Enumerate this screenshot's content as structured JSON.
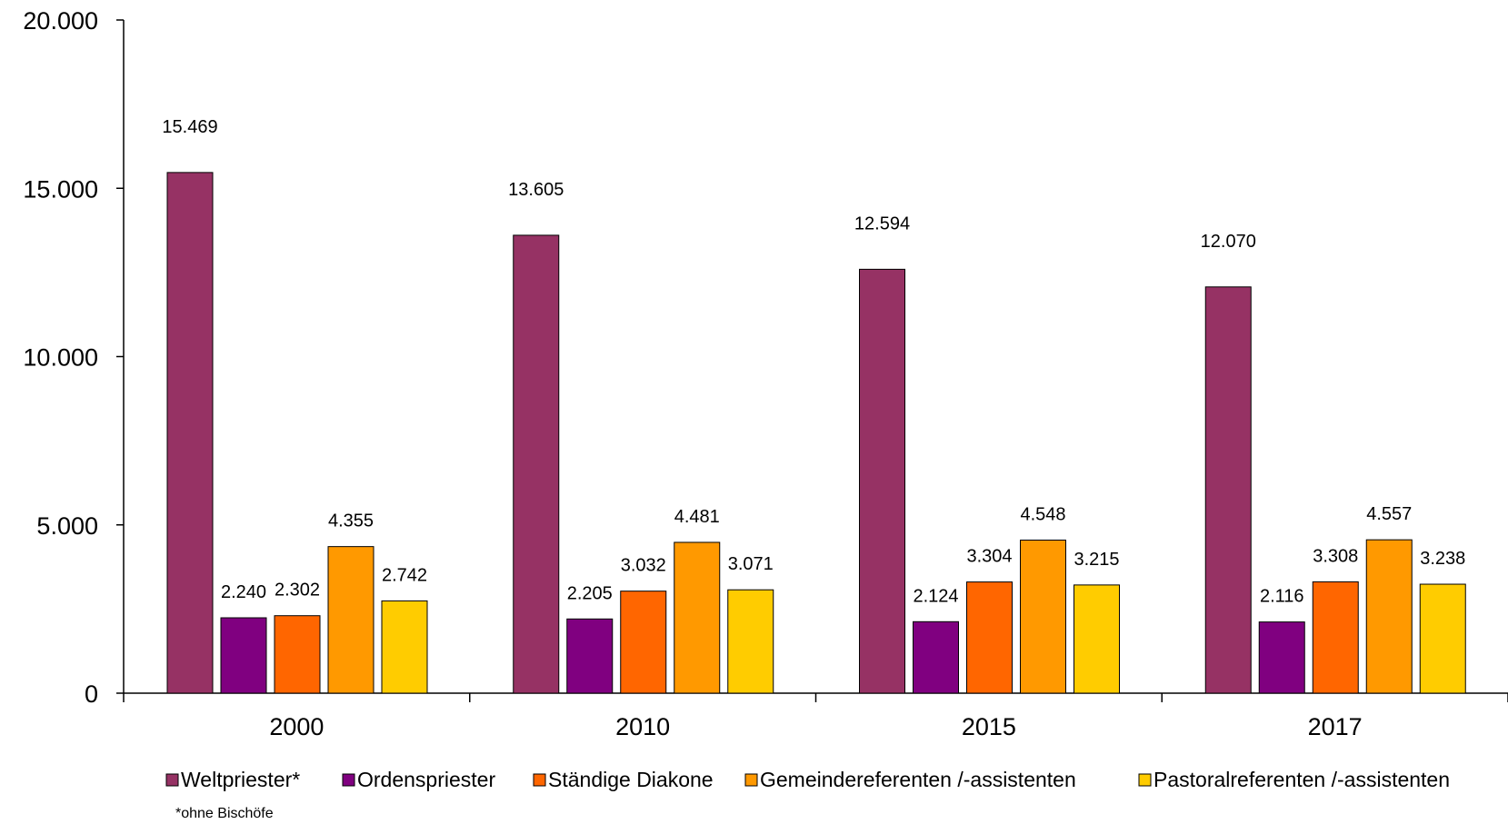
{
  "chart_data": {
    "type": "bar",
    "categories": [
      "2000",
      "2010",
      "2015",
      "2017"
    ],
    "series": [
      {
        "name": "Weltpriester*",
        "color": "#963264",
        "values": [
          15469,
          13605,
          12594,
          12070
        ],
        "labels": [
          "15.469",
          "13.605",
          "12.594",
          "12.070"
        ]
      },
      {
        "name": "Ordenspriester",
        "color": "#800080",
        "values": [
          2240,
          2205,
          2124,
          2116
        ],
        "labels": [
          "2.240",
          "2.205",
          "2.124",
          "2.116"
        ]
      },
      {
        "name": "Ständige Diakone",
        "color": "#ff6600",
        "values": [
          2302,
          3032,
          3304,
          3308
        ],
        "labels": [
          "2.302",
          "3.032",
          "3.304",
          "3.308"
        ]
      },
      {
        "name": "Gemeindereferenten /-assistenten",
        "color": "#ff9900",
        "values": [
          4355,
          4481,
          4548,
          4557
        ],
        "labels": [
          "4.355",
          "4.481",
          "4.548",
          "4.557"
        ]
      },
      {
        "name": "Pastoralreferenten /-assistenten",
        "color": "#ffcc00",
        "values": [
          2742,
          3071,
          3215,
          3238
        ],
        "labels": [
          "2.742",
          "3.071",
          "3.215",
          "3.238"
        ]
      }
    ],
    "ylim": [
      0,
      20000
    ],
    "yticks": [
      0,
      5000,
      10000,
      15000,
      20000
    ],
    "ytick_labels": [
      "0",
      "5.000",
      "10.000",
      "15.000",
      "20.000"
    ],
    "grid": false,
    "legend_position": "bottom",
    "footnote": "*ohne Bischöfe"
  }
}
